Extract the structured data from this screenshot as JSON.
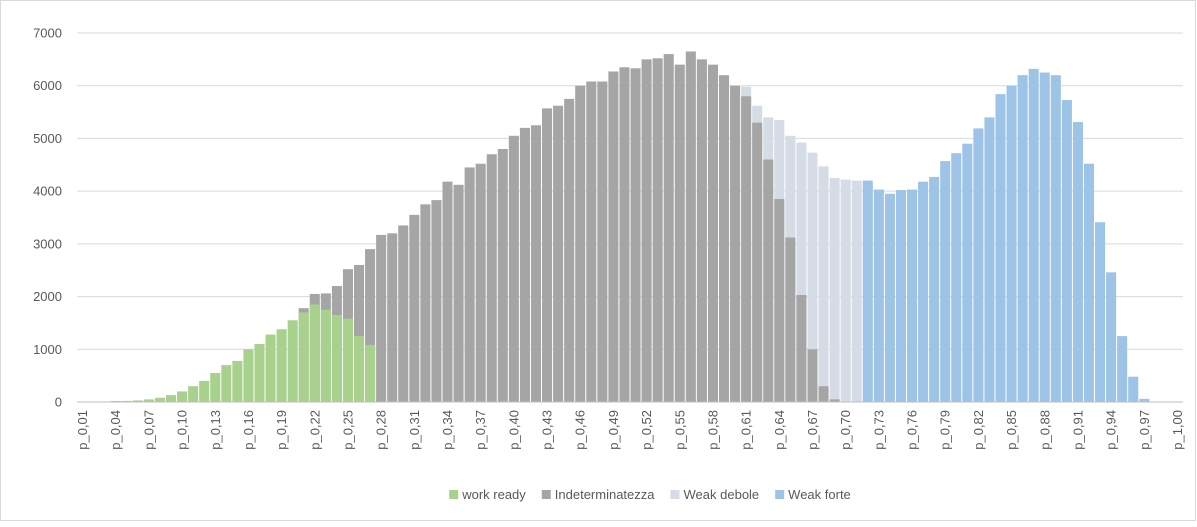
{
  "chart_data": {
    "type": "bar",
    "categories": [
      "p_0,01",
      null,
      null,
      "p_0,04",
      null,
      null,
      "p_0,07",
      null,
      null,
      "p_0,10",
      null,
      null,
      "p_0,13",
      null,
      null,
      "p_0,16",
      null,
      null,
      "p_0,19",
      null,
      null,
      "p_0,22",
      null,
      null,
      "p_0,25",
      null,
      null,
      "p_0,28",
      null,
      null,
      "p_0,31",
      null,
      null,
      "p_0,34",
      null,
      null,
      "p_0,37",
      null,
      null,
      "p_0,40",
      null,
      null,
      "p_0,43",
      null,
      null,
      "p_0,46",
      null,
      null,
      "p_0,49",
      null,
      null,
      "p_0,52",
      null,
      null,
      "p_0,55",
      null,
      null,
      "p_0,58",
      null,
      null,
      "p_0,61",
      null,
      null,
      "p_0,64",
      null,
      null,
      "p_0,67",
      null,
      null,
      "p_0,70",
      null,
      null,
      "p_0,73",
      null,
      null,
      "p_0,76",
      null,
      null,
      "p_0,79",
      null,
      null,
      "p_0,82",
      null,
      null,
      "p_0,85",
      null,
      null,
      "p_0,88",
      null,
      null,
      "p_0,91",
      null,
      null,
      "p_0,94",
      null,
      null,
      "p_0,97",
      null,
      null,
      "p_1,00"
    ],
    "series": [
      {
        "name": "work ready",
        "color": "#a9d18e",
        "values": [
          0,
          5,
          10,
          20,
          20,
          30,
          50,
          80,
          130,
          200,
          300,
          400,
          550,
          700,
          780,
          1000,
          1100,
          1280,
          1380,
          1550,
          1700,
          1850,
          1750,
          1650,
          1580,
          1250,
          1080,
          null,
          null,
          null,
          null,
          null,
          null,
          null,
          null,
          null,
          null,
          null,
          null,
          null,
          null,
          null,
          null,
          null,
          null,
          null,
          null,
          null,
          null,
          null,
          null,
          null,
          null,
          null,
          null,
          null,
          null,
          null,
          null,
          null,
          null,
          null,
          null,
          null,
          null,
          null,
          null,
          null,
          null,
          null,
          null,
          null,
          null,
          null,
          null,
          null,
          null,
          null,
          null,
          null,
          null,
          null,
          null,
          null,
          null,
          null,
          null,
          null,
          null,
          null,
          null,
          null,
          null,
          null,
          null,
          null,
          null,
          null,
          null,
          null
        ]
      },
      {
        "name": "Indeterminatezza",
        "color": "#a5a5a5",
        "values": [
          null,
          null,
          null,
          null,
          null,
          null,
          null,
          null,
          null,
          null,
          null,
          null,
          null,
          null,
          null,
          null,
          null,
          null,
          null,
          null,
          1780,
          2050,
          2060,
          2200,
          2520,
          2600,
          2900,
          3170,
          3200,
          3350,
          3550,
          3750,
          3830,
          4180,
          4120,
          4450,
          4520,
          4700,
          4800,
          5050,
          5200,
          5250,
          5570,
          5620,
          5750,
          6000,
          6080,
          6080,
          6270,
          6350,
          6330,
          6500,
          6520,
          6600,
          6400,
          6650,
          6500,
          6400,
          6200,
          6000,
          5800,
          5300,
          4600,
          3850,
          3120,
          2030,
          1000,
          300,
          50,
          null,
          null,
          null,
          null,
          null,
          null,
          null,
          null,
          null,
          null,
          null,
          null,
          null,
          null,
          null,
          null,
          null,
          null,
          null,
          null,
          null,
          null,
          null,
          null,
          null,
          null,
          null,
          null,
          null,
          null,
          null
        ]
      },
      {
        "name": "Weak debole",
        "color": "#d6dce5",
        "values": [
          null,
          null,
          null,
          null,
          null,
          null,
          null,
          null,
          null,
          null,
          null,
          null,
          null,
          null,
          null,
          null,
          null,
          null,
          null,
          null,
          null,
          null,
          null,
          null,
          null,
          null,
          null,
          null,
          null,
          null,
          null,
          null,
          null,
          null,
          null,
          null,
          null,
          null,
          null,
          null,
          null,
          null,
          null,
          null,
          null,
          null,
          null,
          null,
          null,
          null,
          null,
          null,
          null,
          null,
          null,
          null,
          null,
          6230,
          6150,
          5850,
          5980,
          5620,
          5400,
          5350,
          5050,
          4920,
          4730,
          4470,
          4250,
          4220,
          4200,
          null,
          null,
          null,
          null,
          null,
          null,
          null,
          null,
          null,
          null,
          null,
          null,
          null,
          null,
          null,
          null,
          null,
          null,
          null,
          null,
          null,
          null,
          null,
          null,
          null,
          null,
          null,
          null,
          null
        ]
      },
      {
        "name": "Weak forte",
        "color": "#9dc3e6",
        "values": [
          null,
          null,
          null,
          null,
          null,
          null,
          null,
          null,
          null,
          null,
          null,
          null,
          null,
          null,
          null,
          null,
          null,
          null,
          null,
          null,
          null,
          null,
          null,
          null,
          null,
          null,
          null,
          null,
          null,
          null,
          null,
          null,
          null,
          null,
          null,
          null,
          null,
          null,
          null,
          null,
          null,
          null,
          null,
          null,
          null,
          null,
          null,
          null,
          null,
          null,
          null,
          null,
          null,
          null,
          null,
          null,
          null,
          null,
          null,
          null,
          null,
          null,
          null,
          null,
          null,
          null,
          null,
          null,
          null,
          null,
          null,
          4200,
          4030,
          3950,
          4020,
          4030,
          4180,
          4270,
          4570,
          4720,
          4900,
          5190,
          5400,
          5840,
          6000,
          6200,
          6320,
          6250,
          6200,
          5730,
          5310,
          4520,
          3410,
          2460,
          1250,
          480,
          60,
          null,
          null,
          null
        ]
      }
    ],
    "ylim": [
      0,
      7000
    ],
    "yticks": [
      0,
      1000,
      2000,
      3000,
      4000,
      5000,
      6000,
      7000
    ],
    "grid": true,
    "legend": "bottom"
  }
}
